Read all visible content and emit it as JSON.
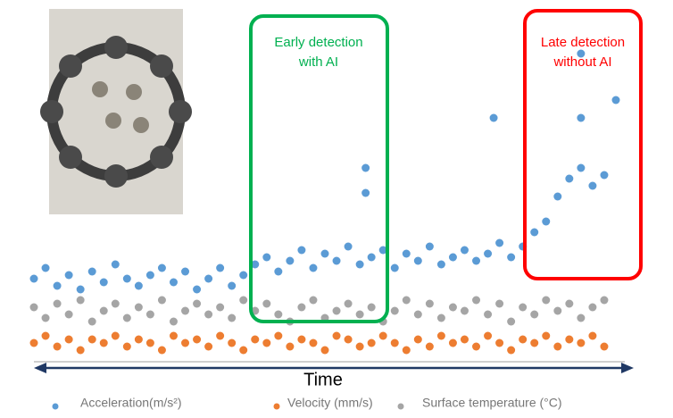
{
  "chart_data": {
    "type": "scatter",
    "x_label": "Time",
    "annotations": [
      {
        "lines": [
          "Early detection",
          "with AI"
        ],
        "color": "#00b050"
      },
      {
        "lines": [
          "Late detection",
          "without AI"
        ],
        "color": "#ff0000"
      }
    ],
    "xlim": [
      0,
      100
    ],
    "ylim": [
      0,
      100
    ],
    "series": [
      {
        "name": "Acceleration(m/s²)",
        "color": "#5b9bd5",
        "x": [
          0,
          2,
          4,
          6,
          8,
          10,
          12,
          14,
          16,
          18,
          20,
          22,
          24,
          26,
          28,
          30,
          32,
          34,
          36,
          38,
          40,
          42,
          44,
          46,
          48,
          50,
          52,
          54,
          56,
          58,
          60,
          62,
          64,
          66,
          68,
          70,
          72,
          74,
          76,
          78,
          80,
          82,
          84,
          86,
          88,
          90,
          92,
          94,
          96,
          98,
          57,
          57,
          79,
          94,
          94,
          100
        ],
        "values": [
          22,
          25,
          20,
          23,
          19,
          24,
          21,
          26,
          22,
          20,
          23,
          25,
          21,
          24,
          19,
          22,
          25,
          20,
          23,
          26,
          28,
          24,
          27,
          30,
          25,
          29,
          27,
          31,
          26,
          28,
          30,
          25,
          29,
          27,
          31,
          26,
          28,
          30,
          27,
          29,
          32,
          28,
          31,
          35,
          38,
          45,
          50,
          53,
          48,
          51,
          53,
          46,
          67,
          67,
          85,
          72
        ]
      },
      {
        "name": "Velocity (mm/s)",
        "color": "#ed7d31",
        "x": [
          0,
          2,
          4,
          6,
          8,
          10,
          12,
          14,
          16,
          18,
          20,
          22,
          24,
          26,
          28,
          30,
          32,
          34,
          36,
          38,
          40,
          42,
          44,
          46,
          48,
          50,
          52,
          54,
          56,
          58,
          60,
          62,
          64,
          66,
          68,
          70,
          72,
          74,
          76,
          78,
          80,
          82,
          84,
          86,
          88,
          90,
          92,
          94,
          96,
          98
        ],
        "values": [
          4,
          6,
          3,
          5,
          2,
          5,
          4,
          6,
          3,
          5,
          4,
          2,
          6,
          4,
          5,
          3,
          6,
          4,
          2,
          5,
          4,
          6,
          3,
          5,
          4,
          2,
          6,
          5,
          3,
          4,
          6,
          4,
          2,
          5,
          3,
          6,
          4,
          5,
          3,
          6,
          4,
          2,
          5,
          4,
          6,
          3,
          5,
          4,
          6,
          3
        ]
      },
      {
        "name": "Surface temperature (°C)",
        "color": "#a5a5a5",
        "x": [
          0,
          2,
          4,
          6,
          8,
          10,
          12,
          14,
          16,
          18,
          20,
          22,
          24,
          26,
          28,
          30,
          32,
          34,
          36,
          38,
          40,
          42,
          44,
          46,
          48,
          50,
          52,
          54,
          56,
          58,
          60,
          62,
          64,
          66,
          68,
          70,
          72,
          74,
          76,
          78,
          80,
          82,
          84,
          86,
          88,
          90,
          92,
          94,
          96,
          98
        ],
        "values": [
          14,
          11,
          15,
          12,
          16,
          10,
          13,
          15,
          11,
          14,
          12,
          16,
          10,
          13,
          15,
          12,
          14,
          11,
          16,
          13,
          15,
          12,
          10,
          14,
          16,
          11,
          13,
          15,
          12,
          14,
          10,
          13,
          16,
          12,
          15,
          11,
          14,
          13,
          16,
          12,
          15,
          10,
          14,
          12,
          16,
          13,
          15,
          11,
          14,
          16
        ]
      }
    ]
  }
}
